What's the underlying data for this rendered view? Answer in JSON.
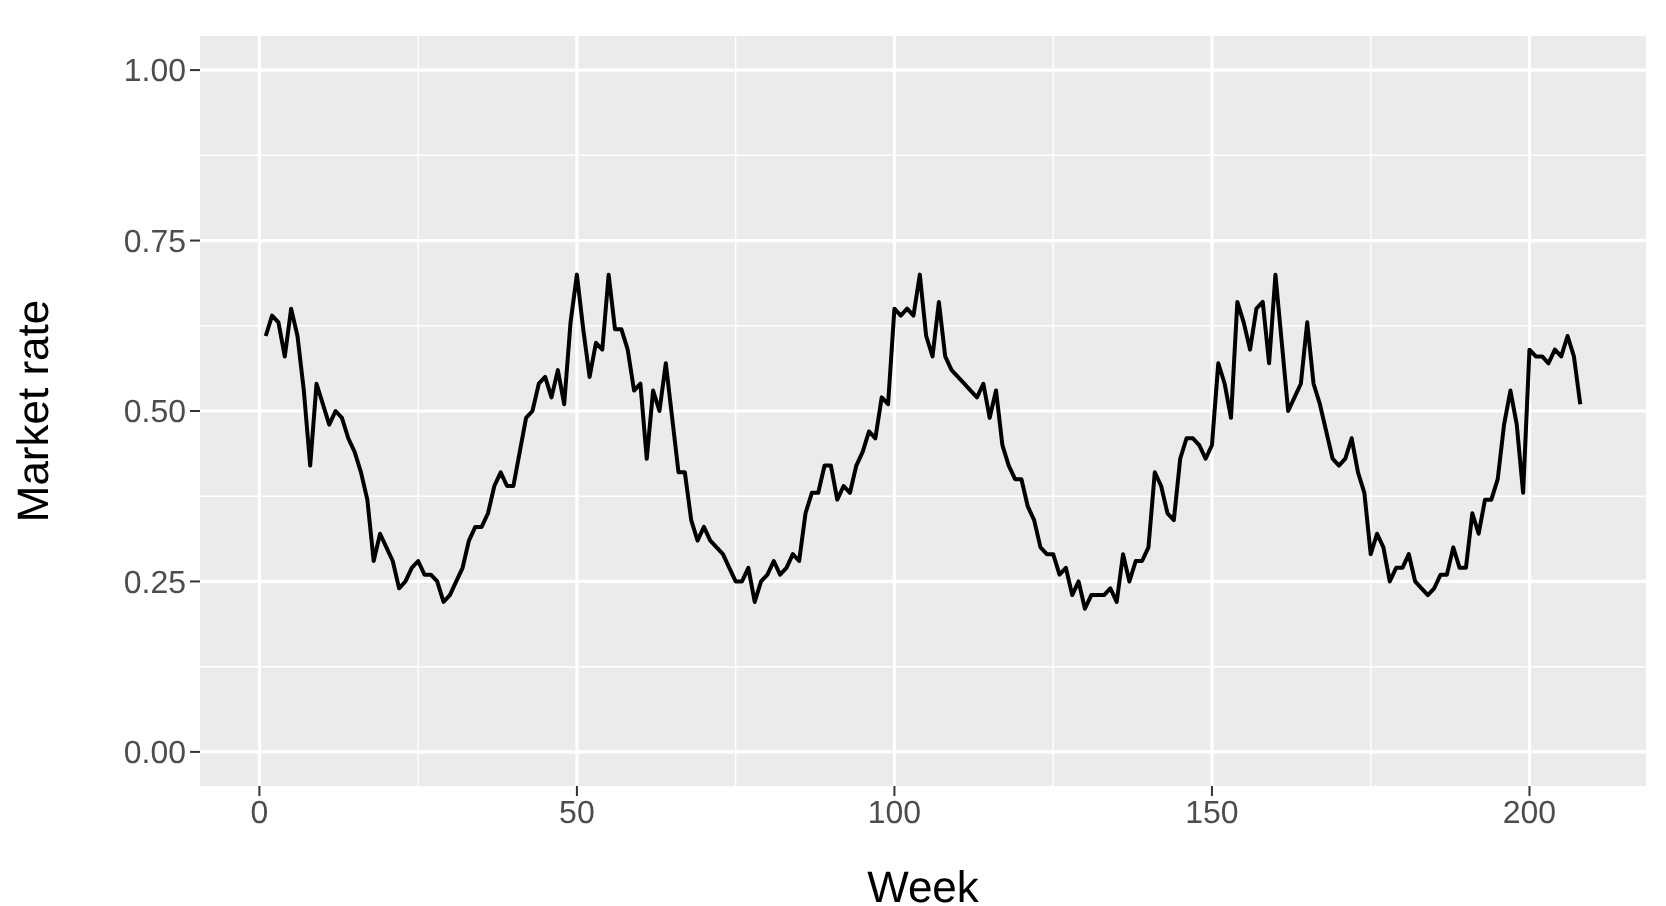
{
  "chart_data": {
    "type": "line",
    "xlabel": "Week",
    "ylabel": "Market rate",
    "xlim": [
      -9.35,
      218.35
    ],
    "xticks": [
      0,
      50,
      100,
      150,
      200
    ],
    "ylim": [
      -0.05,
      1.05
    ],
    "yticks": [
      {
        "value": 0,
        "label": "0.00"
      },
      {
        "value": 0.25,
        "label": "0.25"
      },
      {
        "value": 0.5,
        "label": "0.50"
      },
      {
        "value": 0.75,
        "label": "0.75"
      },
      {
        "value": 1,
        "label": "1.00"
      }
    ],
    "grid": true,
    "legend": false,
    "x": [
      1,
      2,
      3,
      4,
      5,
      6,
      7,
      8,
      9,
      10,
      11,
      12,
      13,
      14,
      15,
      16,
      17,
      18,
      19,
      20,
      21,
      22,
      23,
      24,
      25,
      26,
      27,
      28,
      29,
      30,
      31,
      32,
      33,
      34,
      35,
      36,
      37,
      38,
      39,
      40,
      41,
      42,
      43,
      44,
      45,
      46,
      47,
      48,
      49,
      50,
      51,
      52,
      53,
      54,
      55,
      56,
      57,
      58,
      59,
      60,
      61,
      62,
      63,
      64,
      65,
      66,
      67,
      68,
      69,
      70,
      71,
      72,
      73,
      74,
      75,
      76,
      77,
      78,
      79,
      80,
      81,
      82,
      83,
      84,
      85,
      86,
      87,
      88,
      89,
      90,
      91,
      92,
      93,
      94,
      95,
      96,
      97,
      98,
      99,
      100,
      101,
      102,
      103,
      104,
      105,
      106,
      107,
      108,
      109,
      110,
      111,
      112,
      113,
      114,
      115,
      116,
      117,
      118,
      119,
      120,
      121,
      122,
      123,
      124,
      125,
      126,
      127,
      128,
      129,
      130,
      131,
      132,
      133,
      134,
      135,
      136,
      137,
      138,
      139,
      140,
      141,
      142,
      143,
      144,
      145,
      146,
      147,
      148,
      149,
      150,
      151,
      152,
      153,
      154,
      155,
      156,
      157,
      158,
      159,
      160,
      161,
      162,
      163,
      164,
      165,
      166,
      167,
      168,
      169,
      170,
      171,
      172,
      173,
      174,
      175,
      176,
      177,
      178,
      179,
      180,
      181,
      182,
      183,
      184,
      185,
      186,
      187,
      188,
      189,
      190,
      191,
      192,
      193,
      194,
      195,
      196,
      197,
      198,
      199,
      200,
      201,
      202,
      203,
      204,
      205,
      206,
      207,
      208
    ],
    "series": [
      {
        "color": "#000000",
        "values": [
          0.61,
          0.64,
          0.63,
          0.58,
          0.65,
          0.61,
          0.53,
          0.42,
          0.54,
          0.51,
          0.48,
          0.5,
          0.49,
          0.46,
          0.44,
          0.41,
          0.37,
          0.28,
          0.32,
          0.3,
          0.28,
          0.24,
          0.25,
          0.27,
          0.28,
          0.26,
          0.26,
          0.25,
          0.22,
          0.23,
          0.25,
          0.27,
          0.31,
          0.33,
          0.33,
          0.35,
          0.39,
          0.41,
          0.39,
          0.39,
          0.44,
          0.49,
          0.5,
          0.54,
          0.55,
          0.52,
          0.56,
          0.51,
          0.63,
          0.7,
          0.62,
          0.55,
          0.6,
          0.59,
          0.7,
          0.62,
          0.62,
          0.59,
          0.53,
          0.54,
          0.43,
          0.53,
          0.5,
          0.57,
          0.49,
          0.41,
          0.41,
          0.34,
          0.31,
          0.33,
          0.31,
          0.3,
          0.29,
          0.27,
          0.25,
          0.25,
          0.27,
          0.22,
          0.25,
          0.26,
          0.28,
          0.26,
          0.27,
          0.29,
          0.28,
          0.35,
          0.38,
          0.38,
          0.42,
          0.42,
          0.37,
          0.39,
          0.38,
          0.42,
          0.44,
          0.47,
          0.46,
          0.52,
          0.51,
          0.65,
          0.64,
          0.65,
          0.64,
          0.7,
          0.61,
          0.58,
          0.66,
          0.58,
          0.56,
          0.55,
          0.54,
          0.53,
          0.52,
          0.54,
          0.49,
          0.53,
          0.45,
          0.42,
          0.4,
          0.4,
          0.36,
          0.34,
          0.3,
          0.29,
          0.29,
          0.26,
          0.27,
          0.23,
          0.25,
          0.21,
          0.23,
          0.23,
          0.23,
          0.24,
          0.22,
          0.29,
          0.25,
          0.28,
          0.28,
          0.3,
          0.41,
          0.39,
          0.35,
          0.34,
          0.43,
          0.46,
          0.46,
          0.45,
          0.43,
          0.45,
          0.57,
          0.54,
          0.49,
          0.66,
          0.63,
          0.59,
          0.65,
          0.66,
          0.57,
          0.7,
          0.6,
          0.5,
          0.52,
          0.54,
          0.63,
          0.54,
          0.51,
          0.47,
          0.43,
          0.42,
          0.43,
          0.46,
          0.41,
          0.38,
          0.29,
          0.32,
          0.3,
          0.25,
          0.27,
          0.27,
          0.29,
          0.25,
          0.24,
          0.23,
          0.24,
          0.26,
          0.26,
          0.3,
          0.27,
          0.27,
          0.35,
          0.32,
          0.37,
          0.37,
          0.4,
          0.48,
          0.53,
          0.48,
          0.38,
          0.59,
          0.58,
          0.58,
          0.57,
          0.59,
          0.58,
          0.61,
          0.58,
          0.51
        ]
      }
    ]
  }
}
